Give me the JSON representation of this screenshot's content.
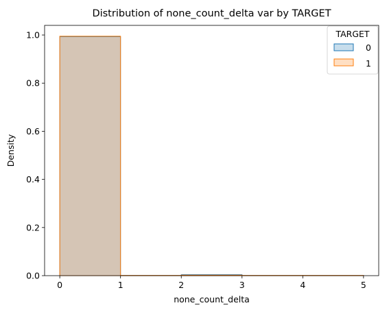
{
  "chart_data": {
    "type": "histogram",
    "title": "Distribution of none_count_delta var by TARGET",
    "xlabel": "none_count_delta",
    "ylabel": "Density",
    "xlim": [
      -0.25,
      5.25
    ],
    "ylim": [
      0,
      1.04
    ],
    "xticks": [
      0,
      1,
      2,
      3,
      4,
      5
    ],
    "yticks": [
      0.0,
      0.2,
      0.4,
      0.6,
      0.8,
      1.0
    ],
    "bin_edges": [
      0,
      1,
      2,
      3,
      4,
      5
    ],
    "legend": {
      "title": "TARGET",
      "placement": "top-right"
    },
    "series": [
      {
        "name": "0",
        "color": "#1f77b4",
        "density": [
          0.993,
          0.001,
          0.004,
          0.001,
          0.001
        ]
      },
      {
        "name": "1",
        "color": "#ff7f0e",
        "density": [
          0.995,
          0.001,
          0.002,
          0.001,
          0.001
        ]
      }
    ]
  }
}
